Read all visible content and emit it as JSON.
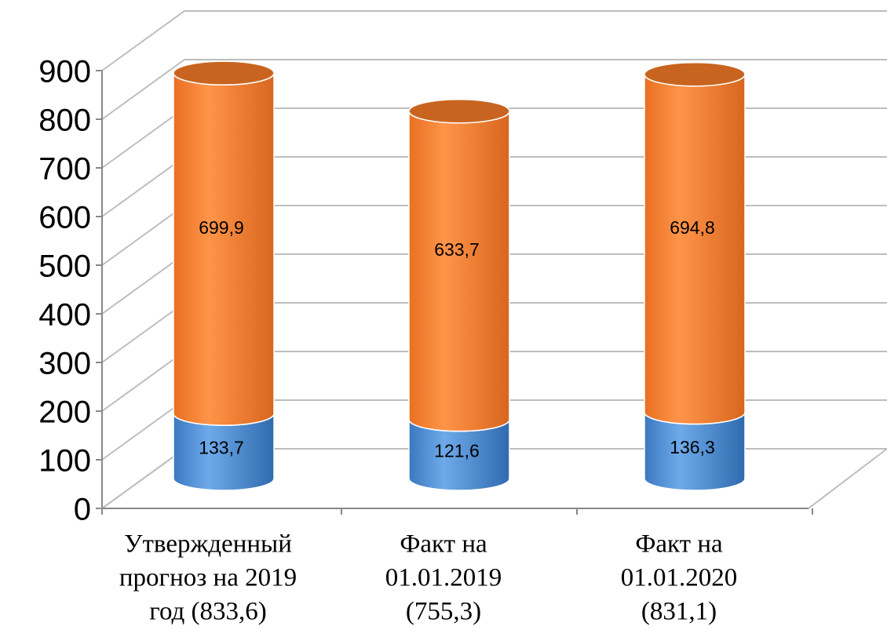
{
  "chart_data": {
    "type": "bar3d",
    "categories": [
      [
        "Утвержденный",
        "прогноз на 2019",
        "год (833,6)"
      ],
      [
        "Факт на",
        "01.01.2019",
        "(755,3)"
      ],
      [
        "Факт на",
        "01.01.2020",
        "(831,1)"
      ]
    ],
    "series": [
      {
        "color": "#4a8fd8",
        "values": [
          133.7,
          121.6,
          136.3
        ],
        "value_labels": [
          "133,7",
          "121,6",
          "136,3"
        ]
      },
      {
        "color": "#f5823a",
        "values": [
          699.9,
          633.7,
          694.8
        ],
        "value_labels": [
          "699,9",
          "633,7",
          "694,8"
        ]
      }
    ],
    "stacked": true,
    "ylim": [
      0,
      900
    ],
    "yticks": [
      0,
      100,
      200,
      300,
      400,
      500,
      600,
      700,
      800,
      900
    ],
    "grid": true
  }
}
